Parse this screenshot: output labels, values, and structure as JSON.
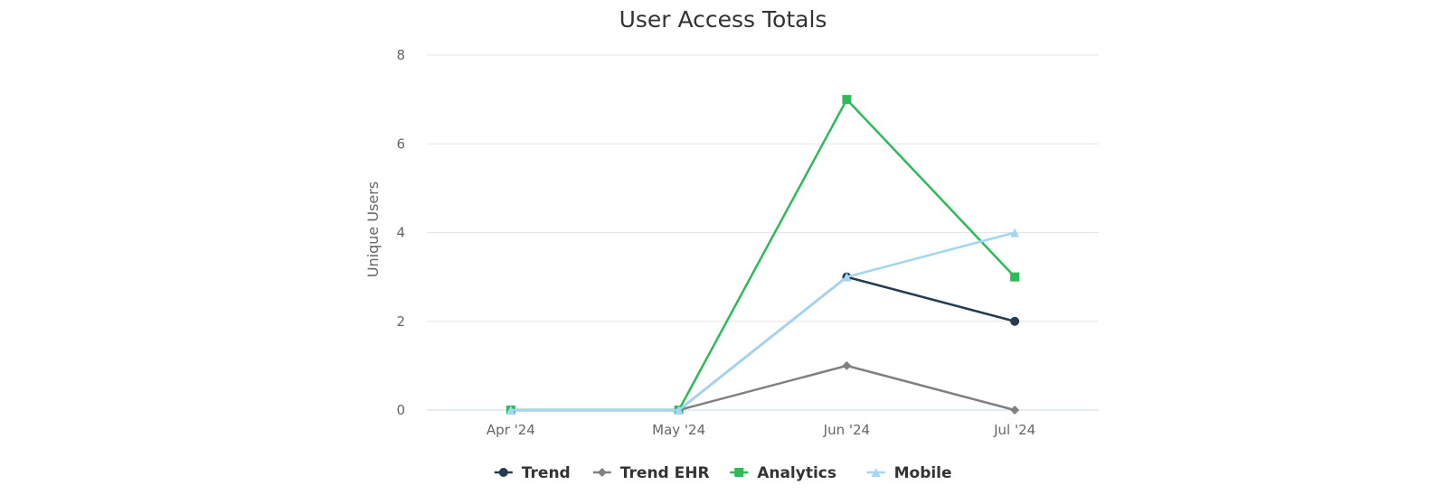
{
  "chart_data": {
    "type": "line",
    "title": "User Access Totals",
    "ylabel": "Unique Users",
    "xlabel": "",
    "categories": [
      "Apr '24",
      "May '24",
      "Jun '24",
      "Jul '24"
    ],
    "ylim": [
      0,
      8
    ],
    "yticks": [
      0,
      2,
      4,
      6,
      8
    ],
    "grid": true,
    "legend_position": "bottom-center",
    "series": [
      {
        "name": "Trend",
        "values": [
          0,
          0,
          3,
          2
        ],
        "color": "#253b50",
        "marker": "circle"
      },
      {
        "name": "Trend EHR",
        "values": [
          0,
          0,
          1,
          0
        ],
        "color": "#808080",
        "marker": "diamond"
      },
      {
        "name": "Analytics",
        "values": [
          0,
          0,
          7,
          3
        ],
        "color": "#2dbb58",
        "marker": "square"
      },
      {
        "name": "Mobile",
        "values": [
          0,
          0,
          3,
          4
        ],
        "color": "#a3d6f5",
        "marker": "triangle"
      }
    ]
  }
}
